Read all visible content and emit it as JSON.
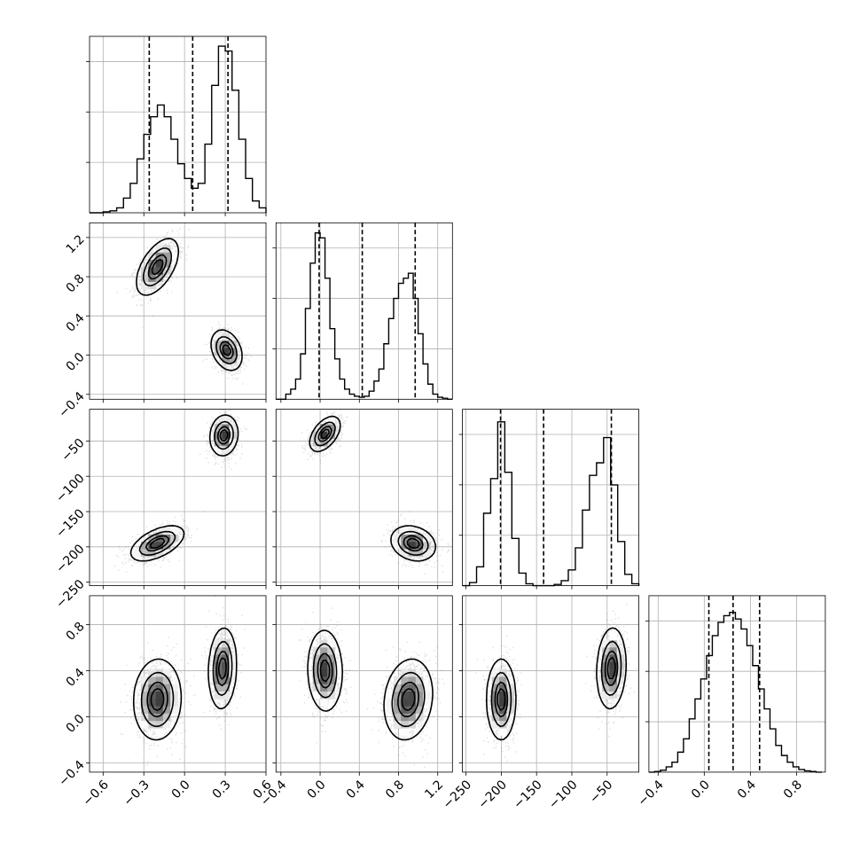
{
  "chart_data": {
    "type": "corner",
    "n_params": 4,
    "grid": true,
    "axes": [
      {
        "index": 0,
        "range": [
          -0.7,
          0.6
        ],
        "ticks": [
          -0.6,
          -0.3,
          0.0,
          0.3,
          0.6
        ],
        "tick_labels": [
          "−0.6",
          "−0.3",
          "0.0",
          "0.3",
          "0.6"
        ]
      },
      {
        "index": 1,
        "range": [
          -0.45,
          1.35
        ],
        "ticks": [
          -0.4,
          0.0,
          0.4,
          0.8,
          1.2
        ],
        "tick_labels": [
          "−0.4",
          "0.0",
          "0.4",
          "0.8",
          "1.2"
        ]
      },
      {
        "index": 2,
        "range": [
          -255,
          -5
        ],
        "ticks": [
          -250,
          -200,
          -150,
          -100,
          -50
        ],
        "tick_labels": [
          "−250",
          "−200",
          "−150",
          "−100",
          "−50"
        ]
      },
      {
        "index": 3,
        "range": [
          -0.48,
          1.05
        ],
        "ticks": [
          -0.4,
          0.0,
          0.4,
          0.8
        ],
        "tick_labels": [
          "−0.4",
          "0.0",
          "0.4",
          "0.8"
        ]
      }
    ],
    "marginals": [
      {
        "param": 0,
        "bin_edges": [
          -0.7,
          -0.65,
          -0.6,
          -0.55,
          -0.5,
          -0.45,
          -0.4,
          -0.35,
          -0.3,
          -0.25,
          -0.2,
          -0.15,
          -0.1,
          -0.05,
          0.0,
          0.05,
          0.1,
          0.15,
          0.2,
          0.25,
          0.3,
          0.35,
          0.4,
          0.45,
          0.5,
          0.55,
          0.6
        ],
        "counts": [
          0,
          0,
          1,
          2,
          5,
          15,
          30,
          55,
          80,
          98,
          110,
          98,
          75,
          50,
          35,
          25,
          30,
          70,
          130,
          170,
          165,
          125,
          75,
          35,
          12,
          5
        ],
        "hist_max": 180,
        "quantiles": [
          -0.26,
          0.06,
          0.32
        ]
      },
      {
        "param": 1,
        "bin_edges": [
          -0.45,
          -0.4,
          -0.35,
          -0.3,
          -0.25,
          -0.2,
          -0.15,
          -0.1,
          -0.05,
          0.0,
          0.05,
          0.1,
          0.15,
          0.2,
          0.25,
          0.3,
          0.35,
          0.4,
          0.45,
          0.5,
          0.55,
          0.6,
          0.65,
          0.7,
          0.75,
          0.8,
          0.85,
          0.9,
          0.95,
          1.0,
          1.05,
          1.1,
          1.15,
          1.2,
          1.25,
          1.3,
          1.35
        ],
        "counts": [
          0,
          0,
          5,
          10,
          20,
          45,
          90,
          135,
          165,
          160,
          120,
          70,
          40,
          20,
          10,
          5,
          3,
          2,
          3,
          8,
          18,
          30,
          55,
          80,
          100,
          115,
          120,
          125,
          100,
          65,
          35,
          15,
          5,
          2,
          1,
          0
        ],
        "hist_max": 175,
        "quantiles": [
          -0.01,
          0.43,
          0.97
        ]
      },
      {
        "param": 2,
        "bin_edges": [
          -255,
          -245,
          -235,
          -225,
          -215,
          -205,
          -195,
          -185,
          -175,
          -165,
          -155,
          -145,
          -135,
          -125,
          -115,
          -105,
          -95,
          -85,
          -75,
          -65,
          -55,
          -45,
          -35,
          -25,
          -15,
          -5
        ],
        "counts": [
          0,
          5,
          30,
          115,
          170,
          260,
          180,
          75,
          20,
          3,
          0,
          0,
          0,
          2,
          8,
          25,
          60,
          120,
          175,
          195,
          235,
          160,
          70,
          18,
          3
        ],
        "hist_max": 280,
        "quantiles": [
          -201,
          -140,
          -44
        ]
      },
      {
        "param": 3,
        "bin_edges": [
          -0.48,
          -0.43,
          -0.38,
          -0.33,
          -0.28,
          -0.23,
          -0.18,
          -0.13,
          -0.08,
          -0.03,
          0.02,
          0.07,
          0.12,
          0.17,
          0.22,
          0.27,
          0.32,
          0.37,
          0.42,
          0.47,
          0.52,
          0.57,
          0.62,
          0.67,
          0.72,
          0.77,
          0.82,
          0.87,
          0.92,
          0.97,
          1.02
        ],
        "counts": [
          0,
          1,
          3,
          8,
          15,
          30,
          50,
          80,
          110,
          140,
          175,
          205,
          225,
          235,
          240,
          230,
          215,
          190,
          160,
          125,
          95,
          65,
          40,
          25,
          15,
          8,
          4,
          2,
          1,
          0
        ],
        "hist_max": 265,
        "quantiles": [
          0.04,
          0.25,
          0.48
        ]
      }
    ],
    "joints": [
      {
        "x_param": 0,
        "y_param": 1,
        "modes": [
          {
            "center": [
              -0.2,
              0.9
            ],
            "sigma": [
              0.075,
              0.14
            ],
            "rho": 0.55,
            "weight": 0.5
          },
          {
            "center": [
              0.31,
              0.05
            ],
            "sigma": [
              0.055,
              0.1
            ],
            "rho": -0.3,
            "weight": 0.5
          }
        ]
      },
      {
        "x_param": 0,
        "y_param": 2,
        "modes": [
          {
            "center": [
              -0.2,
              -195
            ],
            "sigma": [
              0.095,
              12
            ],
            "rho": 0.55,
            "weight": 0.5
          },
          {
            "center": [
              0.29,
              -42
            ],
            "sigma": [
              0.05,
              14
            ],
            "rho": 0.1,
            "weight": 0.5
          }
        ]
      },
      {
        "x_param": 1,
        "y_param": 2,
        "modes": [
          {
            "center": [
              0.05,
              -40
            ],
            "sigma": [
              0.075,
              12
            ],
            "rho": 0.5,
            "weight": 0.5
          },
          {
            "center": [
              0.95,
              -195
            ],
            "sigma": [
              0.11,
              12
            ],
            "rho": -0.2,
            "weight": 0.5
          }
        ]
      },
      {
        "x_param": 0,
        "y_param": 3,
        "modes": [
          {
            "center": [
              -0.2,
              0.15
            ],
            "sigma": [
              0.085,
              0.17
            ],
            "rho": 0.05,
            "weight": 0.5
          },
          {
            "center": [
              0.28,
              0.42
            ],
            "sigma": [
              0.05,
              0.17
            ],
            "rho": 0.1,
            "weight": 0.5
          }
        ]
      },
      {
        "x_param": 1,
        "y_param": 3,
        "modes": [
          {
            "center": [
              0.05,
              0.4
            ],
            "sigma": [
              0.085,
              0.17
            ],
            "rho": -0.05,
            "weight": 0.5
          },
          {
            "center": [
              0.9,
              0.15
            ],
            "sigma": [
              0.12,
              0.17
            ],
            "rho": 0.15,
            "weight": 0.5
          }
        ]
      },
      {
        "x_param": 2,
        "y_param": 3,
        "modes": [
          {
            "center": [
              -200,
              0.15
            ],
            "sigma": [
              10,
              0.17
            ],
            "rho": 0.0,
            "weight": 0.5
          },
          {
            "center": [
              -44,
              0.42
            ],
            "sigma": [
              10,
              0.17
            ],
            "rho": 0.1,
            "weight": 0.5
          }
        ]
      }
    ],
    "contour_levels": [
      0.12,
      0.39,
      0.68,
      0.86
    ]
  }
}
